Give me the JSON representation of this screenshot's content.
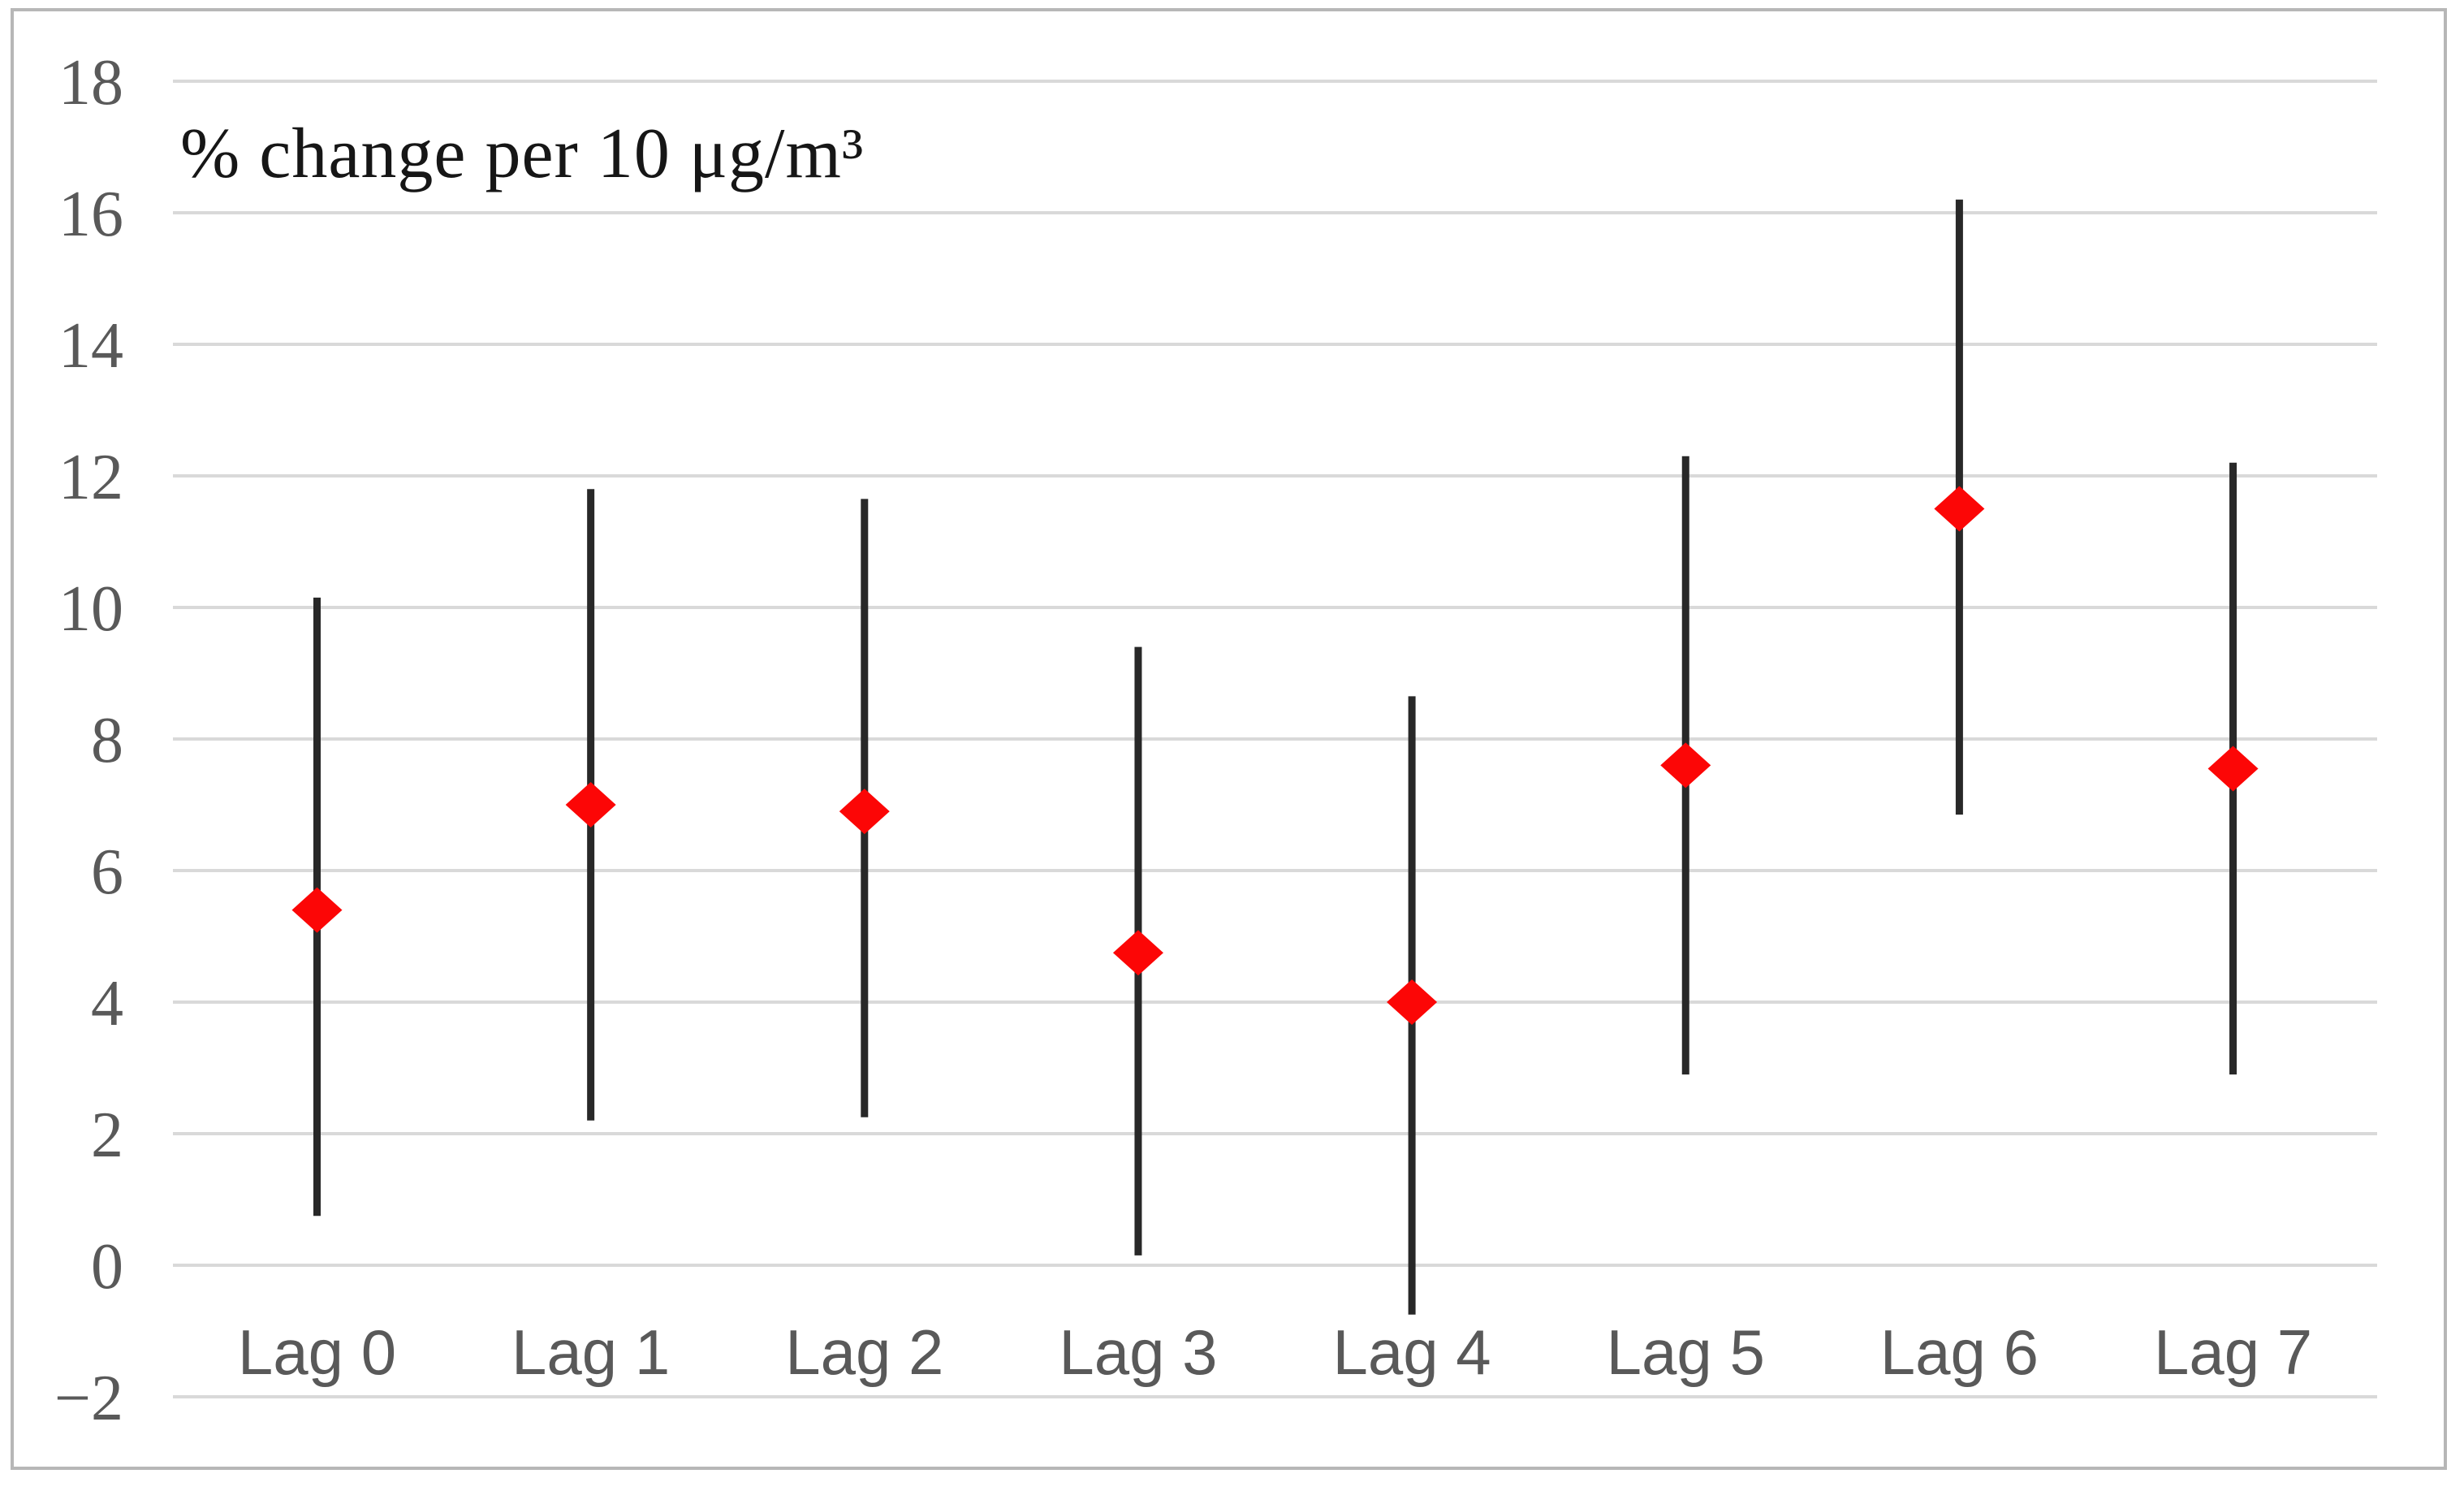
{
  "figure": {
    "background_color": "#ffffff",
    "frame_color": "#b7b7b7"
  },
  "chart_data": {
    "type": "scatter",
    "subtype": "point-estimates-with-95ci-errorbars",
    "title": "% change per 10 μg/m³",
    "xlabel": "",
    "ylabel": "",
    "categories": [
      "Lag 0",
      "Lag 1",
      "Lag 2",
      "Lag 3",
      "Lag 4",
      "Lag 5",
      "Lag 6",
      "Lag 7"
    ],
    "series": [
      {
        "name": "estimate",
        "values": [
          5.4,
          7.0,
          6.9,
          4.75,
          4.0,
          7.6,
          11.5,
          7.55
        ]
      },
      {
        "name": "ci_lower",
        "values": [
          0.75,
          2.2,
          2.25,
          0.15,
          -0.75,
          2.9,
          6.85,
          2.9
        ]
      },
      {
        "name": "ci_upper",
        "values": [
          10.15,
          11.8,
          11.65,
          9.4,
          8.65,
          12.3,
          16.2,
          12.2
        ]
      }
    ],
    "ylim": [
      -2,
      18
    ],
    "ytick_step": 2,
    "ytick_labels": [
      "18",
      "16",
      "14",
      "12",
      "10",
      "8",
      "6",
      "4",
      "2",
      "0",
      "−2"
    ],
    "grid": "horizontal",
    "legend": "none",
    "marker_shape": "diamond",
    "marker_color": "#fc0606",
    "errorbar_color": "#282828",
    "gridline_color": "#d9d9d9",
    "tick_label_color": "#595959",
    "category_label_color": "#595959"
  }
}
